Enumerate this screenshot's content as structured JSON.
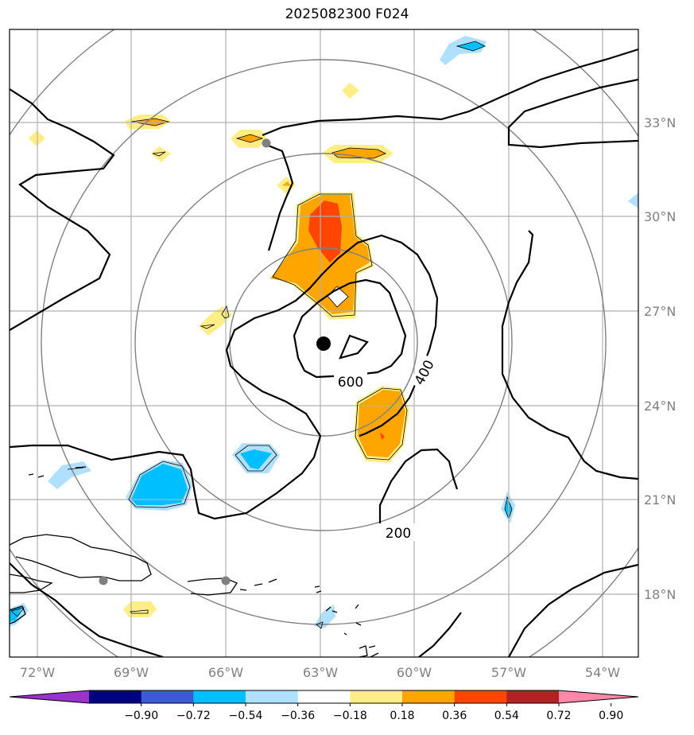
{
  "title": "2025082300 F024",
  "lon_labels": [
    "72°W",
    "69°W",
    "66°W",
    "63°W",
    "60°W",
    "57°W",
    "54°W"
  ],
  "lat_labels": [
    "33°N",
    "30°N",
    "27°N",
    "24°N",
    "21°N",
    "18°N"
  ],
  "contour_labels": [
    "600",
    "400",
    "200"
  ],
  "colorbar": {
    "tick_labels": [
      "−0.90",
      "−0.72",
      "−0.54",
      "−0.36",
      "−0.18",
      "0.18",
      "0.36",
      "0.54",
      "0.72",
      "0.90"
    ],
    "colors": [
      "#9933cc",
      "#000080",
      "#3b5bd6",
      "#00bfff",
      "#b0e0ff",
      "#ffffff",
      "#ffee88",
      "#ffa500",
      "#ff4500",
      "#b22222",
      "#ff88aa"
    ]
  },
  "shading_colors": {
    "light_blue": "#b0e0ff",
    "blue": "#00bfff",
    "light_yellow": "#ffee88",
    "orange": "#ffa500",
    "red_orange": "#ff4500"
  },
  "center": {
    "lon": -62.9,
    "lat": 25.9
  },
  "city_markers": [
    "point-1",
    "point-2",
    "point-3"
  ]
}
